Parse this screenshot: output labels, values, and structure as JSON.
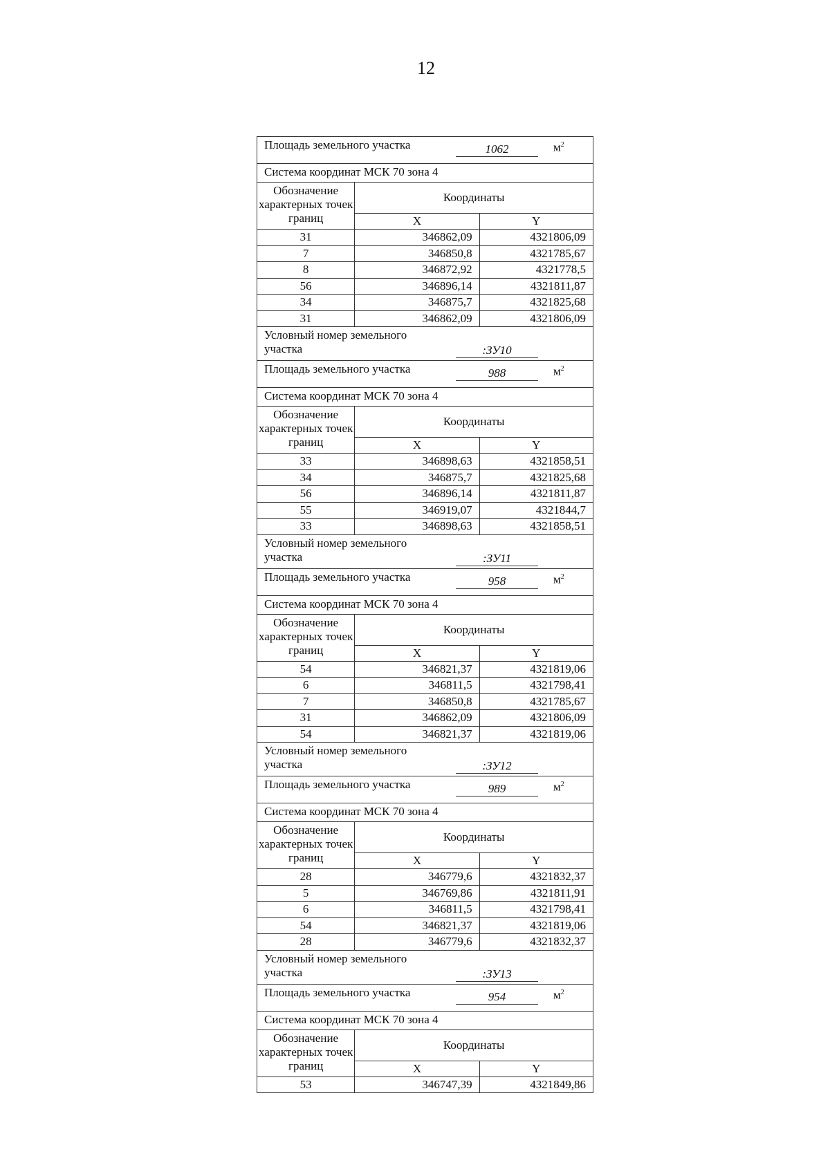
{
  "page_number": "12",
  "labels": {
    "area": "Площадь земельного участка",
    "unit": "м",
    "unit_sup": "2",
    "system": "Система координат МСК 70 зона 4",
    "point_header": "Обозначение характерных точек границ",
    "coords": "Координаты",
    "x": "X",
    "y": "Y",
    "cond_line1": "Условный номер земельного",
    "cond_line2": "участка"
  },
  "parcels": [
    {
      "id": null,
      "area": "1062",
      "points": [
        [
          "31",
          "346862,09",
          "4321806,09"
        ],
        [
          "7",
          "346850,8",
          "4321785,67"
        ],
        [
          "8",
          "346872,92",
          "4321778,5"
        ],
        [
          "56",
          "346896,14",
          "4321811,87"
        ],
        [
          "34",
          "346875,7",
          "4321825,68"
        ],
        [
          "31",
          "346862,09",
          "4321806,09"
        ]
      ]
    },
    {
      "id": ":ЗУ10",
      "area": "988",
      "points": [
        [
          "33",
          "346898,63",
          "4321858,51"
        ],
        [
          "34",
          "346875,7",
          "4321825,68"
        ],
        [
          "56",
          "346896,14",
          "4321811,87"
        ],
        [
          "55",
          "346919,07",
          "4321844,7"
        ],
        [
          "33",
          "346898,63",
          "4321858,51"
        ]
      ]
    },
    {
      "id": ":ЗУ11",
      "area": "958",
      "points": [
        [
          "54",
          "346821,37",
          "4321819,06"
        ],
        [
          "6",
          "346811,5",
          "4321798,41"
        ],
        [
          "7",
          "346850,8",
          "4321785,67"
        ],
        [
          "31",
          "346862,09",
          "4321806,09"
        ],
        [
          "54",
          "346821,37",
          "4321819,06"
        ]
      ]
    },
    {
      "id": ":ЗУ12",
      "area": "989",
      "points": [
        [
          "28",
          "346779,6",
          "4321832,37"
        ],
        [
          "5",
          "346769,86",
          "4321811,91"
        ],
        [
          "6",
          "346811,5",
          "4321798,41"
        ],
        [
          "54",
          "346821,37",
          "4321819,06"
        ],
        [
          "28",
          "346779,6",
          "4321832,37"
        ]
      ]
    },
    {
      "id": ":ЗУ13",
      "area": "954",
      "points": [
        [
          "53",
          "346747,39",
          "4321849,86"
        ]
      ]
    }
  ]
}
